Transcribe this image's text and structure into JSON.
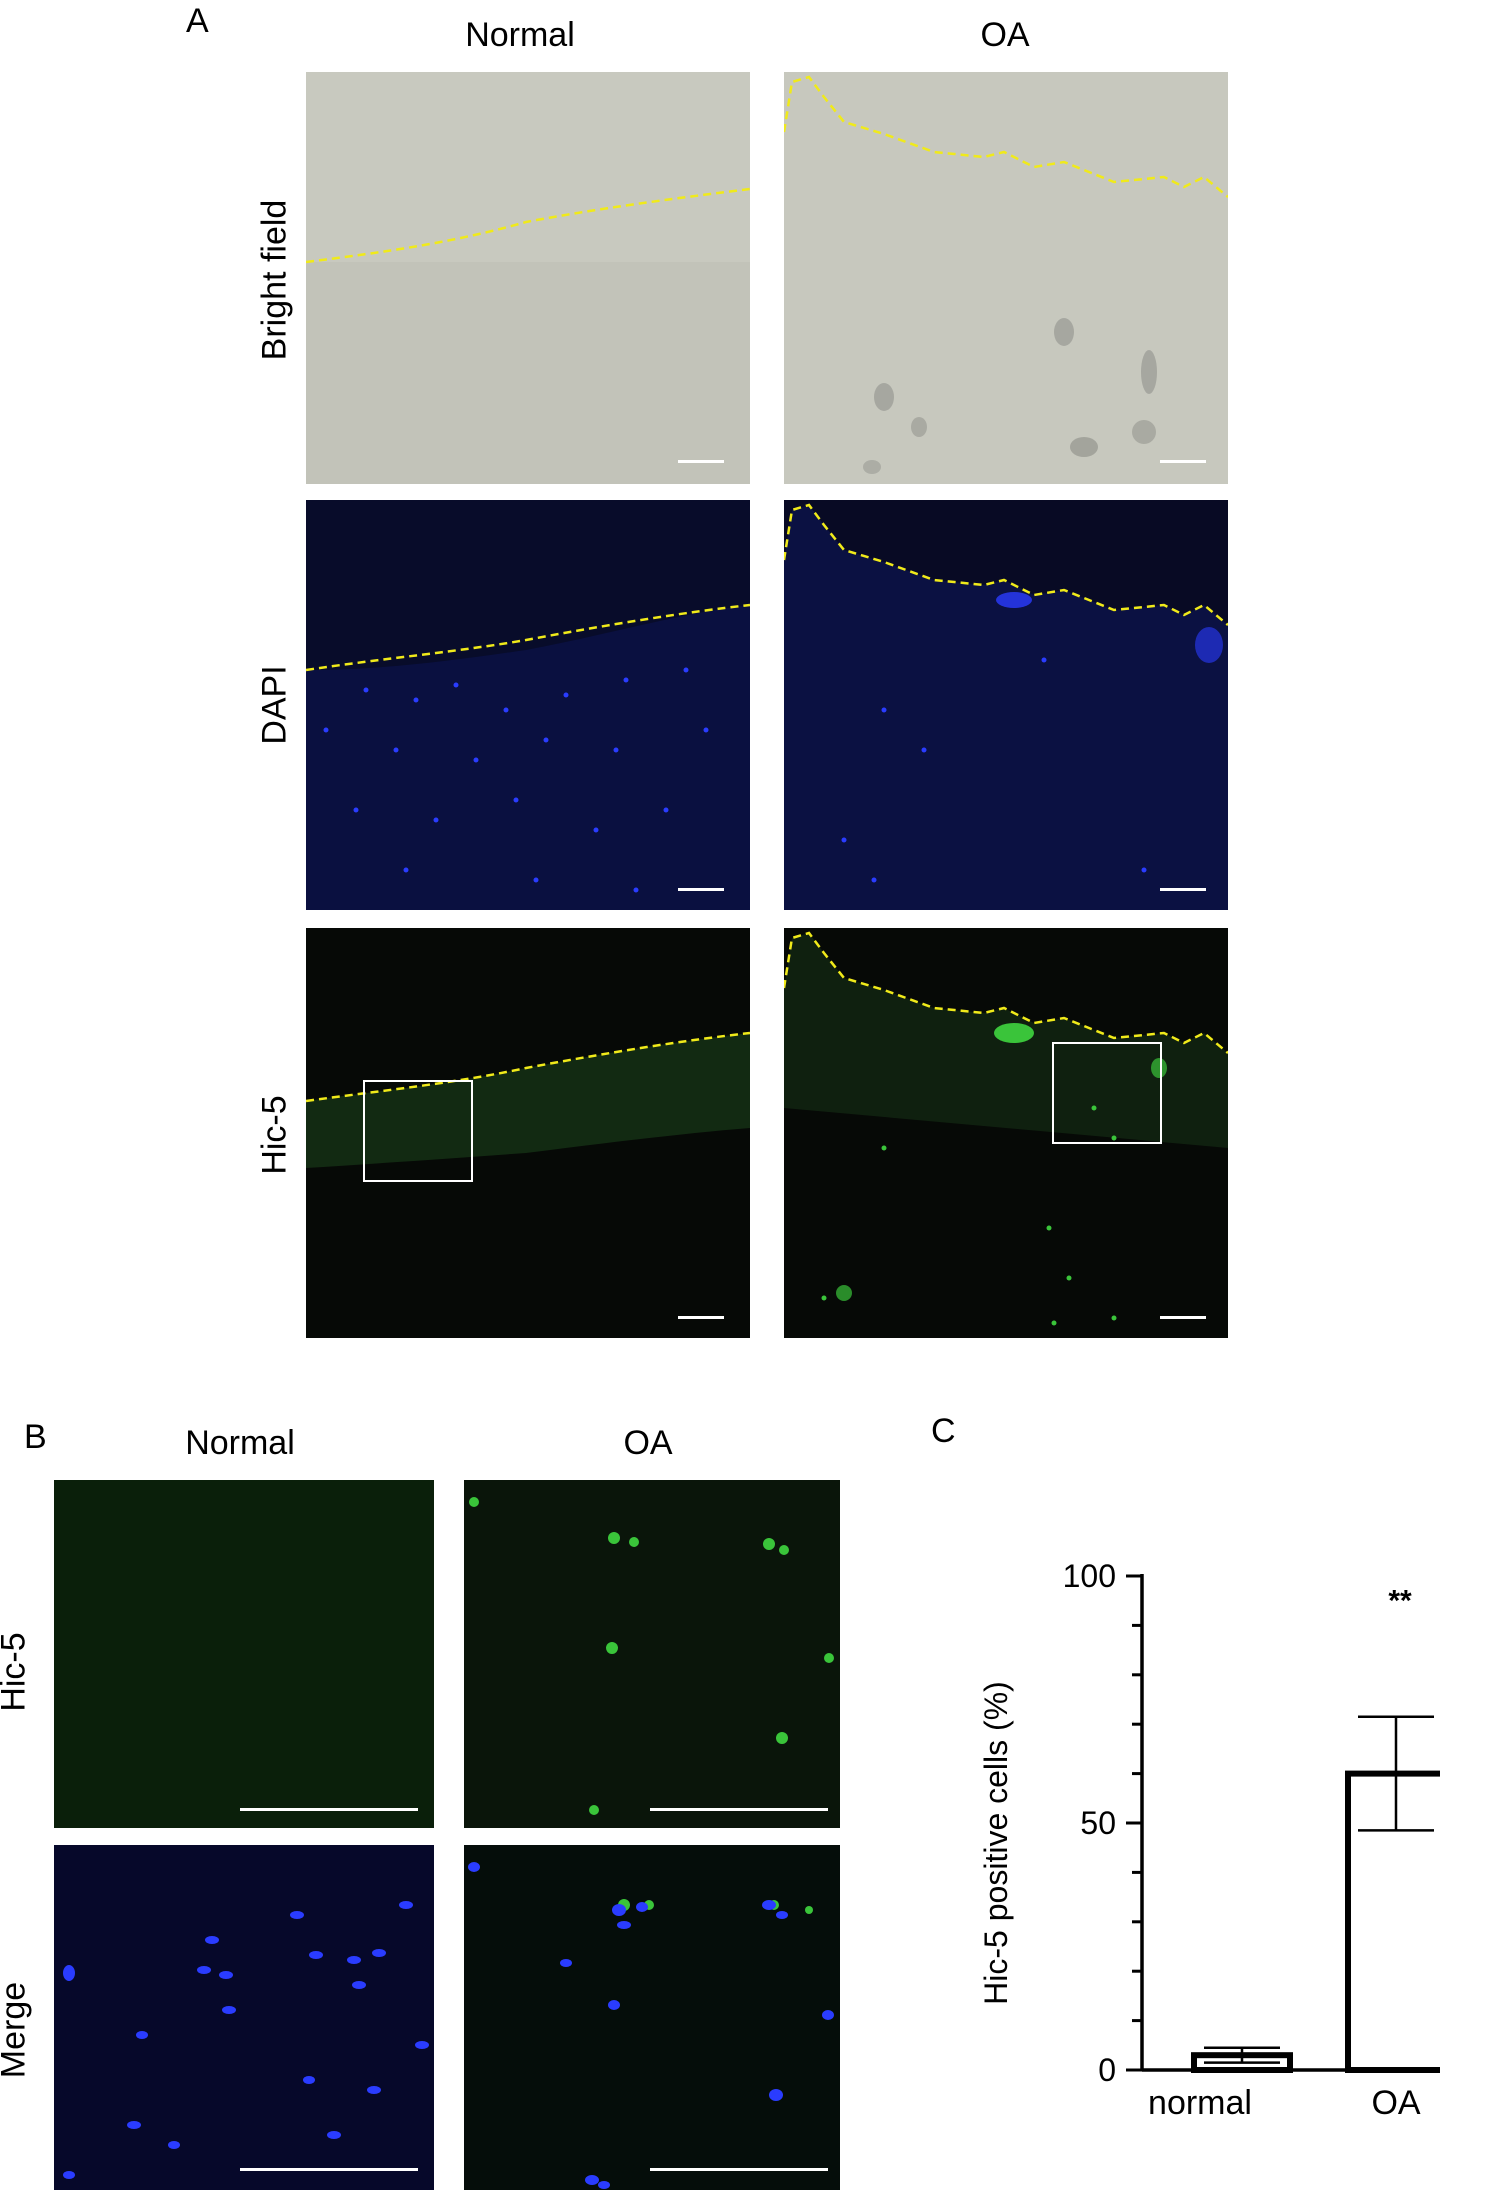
{
  "panel_a": {
    "letter": "A",
    "columns": [
      "Normal",
      "OA"
    ],
    "rows": [
      "Bright field",
      "DAPI",
      "Hic-5"
    ]
  },
  "panel_b": {
    "letter": "B",
    "columns": [
      "Normal",
      "OA"
    ],
    "rows": [
      "Hic-5",
      "Merge"
    ]
  },
  "panel_c": {
    "letter": "C"
  },
  "colors": {
    "bright_field_bg": "#c8c9bf",
    "dapi_bg": "#080c2a",
    "hic5_bg": "#060906",
    "outline": "#f0ea1a",
    "nuclei": "#2a3cff",
    "green_signal": "#3ac43a"
  },
  "chart_data": {
    "type": "bar",
    "categories": [
      "normal",
      "OA"
    ],
    "values": [
      3,
      60
    ],
    "error": [
      1.5,
      11.5
    ],
    "ylabel": "Hic-5 positive cells (%)",
    "ylim": [
      0,
      100
    ],
    "yticks": [
      0,
      50,
      100
    ],
    "annotations": [
      {
        "category": "OA",
        "text": "**"
      }
    ]
  }
}
